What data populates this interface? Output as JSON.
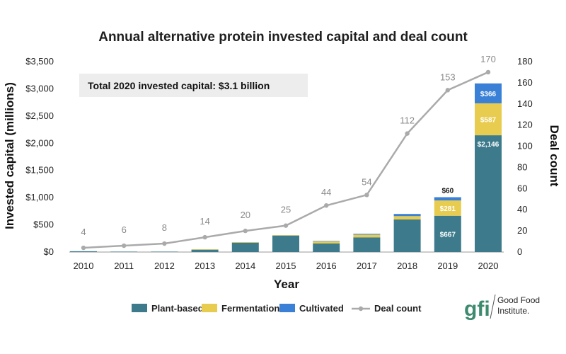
{
  "chart_data": {
    "type": "bar",
    "title": "Annual alternative protein invested capital and deal count",
    "xlabel": "Year",
    "ylabel": "Invested capital (millions)",
    "y2label": "Deal count",
    "ylim": [
      0,
      3500
    ],
    "y2lim": [
      0,
      180
    ],
    "y_ticks": [
      "$0",
      "$500",
      "$1,000",
      "$1,500",
      "$2,000",
      "$2,500",
      "$3,000",
      "$3,500"
    ],
    "y2_ticks": [
      "0",
      "20",
      "40",
      "60",
      "80",
      "100",
      "120",
      "140",
      "160",
      "180"
    ],
    "categories": [
      "2010",
      "2011",
      "2012",
      "2013",
      "2014",
      "2015",
      "2016",
      "2017",
      "2018",
      "2019",
      "2020"
    ],
    "series": [
      {
        "name": "Plant-based",
        "color": "#3d7b8c",
        "values": [
          15,
          8,
          8,
          45,
          175,
          305,
          160,
          270,
          600,
          667,
          2146
        ]
      },
      {
        "name": "Fermentation",
        "color": "#e8cc4f",
        "values": [
          0,
          0,
          0,
          5,
          5,
          5,
          40,
          50,
          60,
          281,
          587
        ]
      },
      {
        "name": "Cultivated",
        "color": "#3a80d6",
        "values": [
          0,
          0,
          0,
          0,
          0,
          0,
          5,
          15,
          40,
          60,
          366
        ]
      },
      {
        "name": "Deal count",
        "color": "#aaaaaa",
        "type": "line",
        "axis": "right",
        "values": [
          4,
          6,
          8,
          14,
          20,
          25,
          44,
          54,
          112,
          153,
          170
        ]
      }
    ],
    "segment_labels": {
      "2019": [
        "$667",
        "$281",
        "$60"
      ],
      "2020": [
        "$2,146",
        "$587",
        "$366"
      ]
    },
    "annotation": "Total 2020 invested capital: $3.1 billion",
    "legend": {
      "placement": "bottom",
      "items": [
        "Plant-based",
        "Fermentation",
        "Cultivated",
        "Deal count"
      ]
    },
    "grid": false
  },
  "logo": {
    "mark": "gfi",
    "line1": "Good Food",
    "line2": "Institute."
  }
}
